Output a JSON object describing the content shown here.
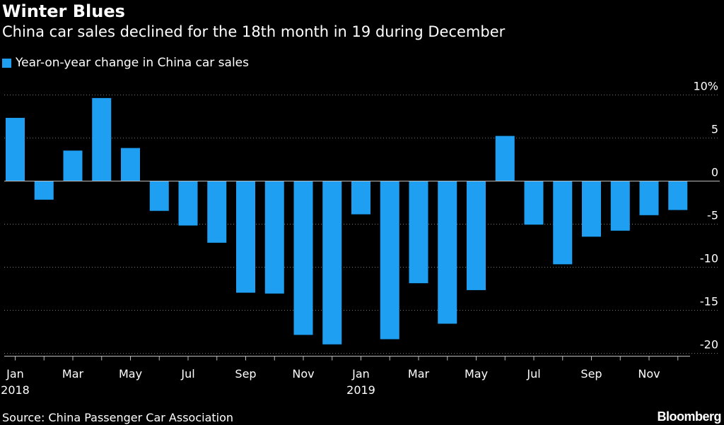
{
  "title": "Winter Blues",
  "subtitle": "China car sales declined for the 18th month in 19 during December",
  "legend": {
    "label": "Year-on-year change in China car sales",
    "color": "#1e9ff2"
  },
  "source": "Source: China Passenger Car Association",
  "brand": "Bloomberg",
  "chart_data": {
    "type": "bar",
    "categories": [
      "Jan 2018",
      "Feb 2018",
      "Mar 2018",
      "Apr 2018",
      "May 2018",
      "Jun 2018",
      "Jul 2018",
      "Aug 2018",
      "Sep 2018",
      "Oct 2018",
      "Nov 2018",
      "Dec 2018",
      "Jan 2019",
      "Feb 2019",
      "Mar 2019",
      "Apr 2019",
      "May 2019",
      "Jun 2019",
      "Jul 2019",
      "Aug 2019",
      "Sep 2019",
      "Oct 2019",
      "Nov 2019",
      "Dec 2019"
    ],
    "series": [
      {
        "name": "Year-on-year change in China car sales",
        "values": [
          7.3,
          -2.2,
          3.5,
          9.6,
          3.8,
          -3.5,
          -5.2,
          -7.2,
          -13.0,
          -13.1,
          -17.9,
          -19.0,
          -3.9,
          -18.4,
          -11.9,
          -16.6,
          -12.7,
          5.2,
          -5.1,
          -9.7,
          -6.5,
          -5.8,
          -4.0,
          -3.4
        ]
      }
    ],
    "color": "#1e9ff2",
    "ylim": [
      -20.5,
      10
    ],
    "yticks": [
      10,
      5,
      0,
      -5,
      -10,
      -15,
      -20
    ],
    "ytick_labels": [
      "10%",
      "5",
      "0",
      "-5",
      "-10",
      "-15",
      "-20"
    ],
    "xticks": [
      {
        "index": 0,
        "label": "Jan",
        "year": "2018"
      },
      {
        "index": 2,
        "label": "Mar"
      },
      {
        "index": 4,
        "label": "May"
      },
      {
        "index": 6,
        "label": "Jul"
      },
      {
        "index": 8,
        "label": "Sep"
      },
      {
        "index": 10,
        "label": "Nov"
      },
      {
        "index": 12,
        "label": "Jan",
        "year": "2019"
      },
      {
        "index": 14,
        "label": "Mar"
      },
      {
        "index": 16,
        "label": "May"
      },
      {
        "index": 18,
        "label": "Jul"
      },
      {
        "index": 20,
        "label": "Sep"
      },
      {
        "index": 22,
        "label": "Nov"
      }
    ],
    "grid": "dotted horizontal",
    "legend_position": "top-left",
    "y_axis_side": "right"
  }
}
